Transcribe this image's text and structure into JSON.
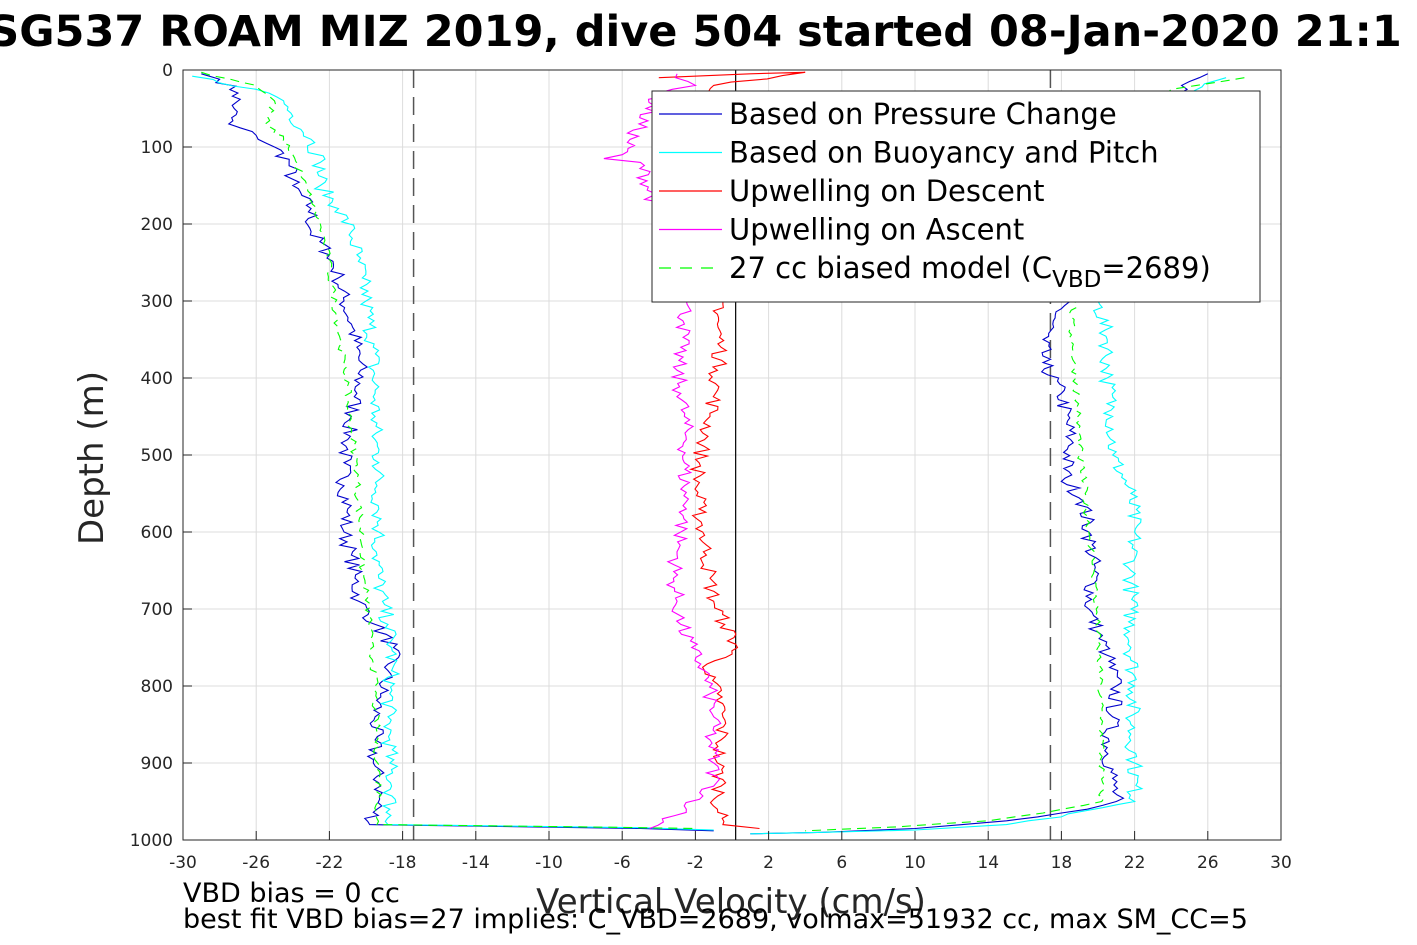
{
  "chart_data": {
    "type": "line",
    "title": "SG537 ROAM MIZ 2019, dive 504 started 08-Jan-2020 21:1",
    "xlabel": "Vertical Velocity (cm/s)",
    "ylabel": "Depth (m)",
    "xlim": [
      -30,
      30
    ],
    "ylim": [
      0,
      1000
    ],
    "y_reversed": true,
    "grid": true,
    "legend_position": "top-right",
    "xticks": [
      -30,
      -26,
      -22,
      -18,
      -14,
      -10,
      -6,
      -2,
      2,
      6,
      10,
      14,
      18,
      22,
      26,
      30
    ],
    "yticks": [
      0,
      100,
      200,
      300,
      400,
      500,
      600,
      700,
      800,
      900,
      1000
    ],
    "reference_lines": {
      "zero_line_x": 0.2,
      "dashed_lines_x": [
        -17.4,
        17.4
      ]
    },
    "series": [
      {
        "name": "Based on Pressure Change",
        "color": "#0000cc",
        "style": "solid",
        "descent": [
          [
            -29,
            5
          ],
          [
            -28,
            12
          ],
          [
            -27,
            30
          ],
          [
            -27.2,
            50
          ],
          [
            -27.5,
            70
          ],
          [
            -26,
            85
          ],
          [
            -25,
            100
          ],
          [
            -24.2,
            120
          ],
          [
            -24,
            150
          ],
          [
            -23,
            180
          ],
          [
            -23,
            210
          ],
          [
            -22,
            240
          ],
          [
            -21.5,
            270
          ],
          [
            -21.2,
            300
          ],
          [
            -20.8,
            330
          ],
          [
            -20.5,
            360
          ],
          [
            -20.3,
            390
          ],
          [
            -20.5,
            420
          ],
          [
            -20.8,
            450
          ],
          [
            -21,
            480
          ],
          [
            -21.2,
            510
          ],
          [
            -21.2,
            540
          ],
          [
            -21,
            570
          ],
          [
            -21.2,
            600
          ],
          [
            -20.8,
            630
          ],
          [
            -20.6,
            660
          ],
          [
            -20.4,
            690
          ],
          [
            -19.5,
            720
          ],
          [
            -18.5,
            750
          ],
          [
            -18.8,
            780
          ],
          [
            -19.2,
            810
          ],
          [
            -19.5,
            840
          ],
          [
            -19.5,
            870
          ],
          [
            -19.6,
            900
          ],
          [
            -19.2,
            930
          ],
          [
            -19.4,
            960
          ],
          [
            -19.8,
            980
          ],
          [
            -5,
            985
          ],
          [
            -1,
            988
          ]
        ],
        "ascent": [
          [
            26,
            5
          ],
          [
            25,
            15
          ],
          [
            24.5,
            30
          ],
          [
            17,
            350
          ],
          [
            17,
            380
          ],
          [
            18,
            420
          ],
          [
            18.5,
            480
          ],
          [
            18.2,
            530
          ],
          [
            19.2,
            560
          ],
          [
            19.5,
            600
          ],
          [
            19.8,
            650
          ],
          [
            19.5,
            700
          ],
          [
            20,
            730
          ],
          [
            20.5,
            760
          ],
          [
            21,
            800
          ],
          [
            20.8,
            840
          ],
          [
            20.5,
            880
          ],
          [
            20.8,
            920
          ],
          [
            21,
            950
          ],
          [
            18,
            965
          ],
          [
            15,
            975
          ],
          [
            10,
            985
          ],
          [
            5,
            990
          ],
          [
            1,
            992
          ]
        ]
      },
      {
        "name": "Based on Buoyancy and Pitch",
        "color": "#00ffff",
        "style": "solid",
        "descent": [
          [
            -29.5,
            8
          ],
          [
            -26,
            25
          ],
          [
            -24.5,
            40
          ],
          [
            -24,
            60
          ],
          [
            -23,
            90
          ],
          [
            -22.5,
            120
          ],
          [
            -22.5,
            150
          ],
          [
            -21.5,
            180
          ],
          [
            -20.8,
            210
          ],
          [
            -20.5,
            240
          ],
          [
            -20.2,
            270
          ],
          [
            -20,
            300
          ],
          [
            -19.8,
            330
          ],
          [
            -19.6,
            360
          ],
          [
            -19.6,
            390
          ],
          [
            -19.5,
            420
          ],
          [
            -19.5,
            450
          ],
          [
            -19.5,
            480
          ],
          [
            -19.3,
            510
          ],
          [
            -19.4,
            540
          ],
          [
            -19.3,
            570
          ],
          [
            -19.3,
            600
          ],
          [
            -19.4,
            630
          ],
          [
            -19.3,
            660
          ],
          [
            -19.1,
            690
          ],
          [
            -18.8,
            720
          ],
          [
            -18.6,
            750
          ],
          [
            -18.6,
            780
          ],
          [
            -18.7,
            810
          ],
          [
            -18.8,
            840
          ],
          [
            -18.7,
            870
          ],
          [
            -18.7,
            900
          ],
          [
            -18.6,
            930
          ],
          [
            -18.7,
            960
          ],
          [
            -18.8,
            980
          ],
          [
            -5,
            984
          ],
          [
            -1,
            987
          ]
        ],
        "ascent": [
          [
            27,
            10
          ],
          [
            25,
            30
          ],
          [
            20,
            300
          ],
          [
            20.5,
            350
          ],
          [
            20.5,
            400
          ],
          [
            20.8,
            450
          ],
          [
            20.8,
            500
          ],
          [
            21.8,
            550
          ],
          [
            22,
            600
          ],
          [
            21.8,
            650
          ],
          [
            21.8,
            700
          ],
          [
            21.8,
            750
          ],
          [
            22,
            800
          ],
          [
            21.8,
            850
          ],
          [
            22,
            900
          ],
          [
            22,
            950
          ],
          [
            18,
            970
          ],
          [
            15,
            980
          ],
          [
            10,
            987
          ],
          [
            5,
            990
          ],
          [
            1,
            992
          ]
        ]
      },
      {
        "name": "Upwelling on Descent",
        "color": "#ff0000",
        "style": "solid",
        "descent": [
          [
            -4,
            10
          ],
          [
            1,
            5
          ],
          [
            4,
            3
          ],
          [
            -1,
            20
          ],
          [
            -2,
            40
          ],
          [
            -0.5,
            300
          ],
          [
            -0.8,
            330
          ],
          [
            -0.6,
            360
          ],
          [
            -0.8,
            390
          ],
          [
            -0.9,
            420
          ],
          [
            -1.2,
            450
          ],
          [
            -1.5,
            480
          ],
          [
            -1.8,
            510
          ],
          [
            -1.9,
            540
          ],
          [
            -1.8,
            570
          ],
          [
            -1.6,
            600
          ],
          [
            -1.4,
            630
          ],
          [
            -1.2,
            660
          ],
          [
            -1.0,
            690
          ],
          [
            -0.4,
            720
          ],
          [
            0.3,
            750
          ],
          [
            -1.5,
            780
          ],
          [
            -0.8,
            810
          ],
          [
            -0.5,
            840
          ],
          [
            -0.6,
            870
          ],
          [
            -0.8,
            900
          ],
          [
            -0.6,
            930
          ],
          [
            -0.8,
            960
          ],
          [
            -0.5,
            980
          ],
          [
            1.5,
            985
          ]
        ]
      },
      {
        "name": "Upwelling on Ascent",
        "color": "#ff00ff",
        "style": "solid",
        "ascent": [
          [
            -3,
            5
          ],
          [
            -2,
            20
          ],
          [
            -4,
            30
          ],
          [
            -6,
            110
          ],
          [
            -7,
            115
          ],
          [
            -5,
            120
          ],
          [
            -2.5,
            300
          ],
          [
            -2.6,
            330
          ],
          [
            -2.8,
            360
          ],
          [
            -3,
            390
          ],
          [
            -2.8,
            420
          ],
          [
            -2.6,
            450
          ],
          [
            -2.5,
            480
          ],
          [
            -2.6,
            510
          ],
          [
            -2.6,
            540
          ],
          [
            -2.5,
            570
          ],
          [
            -2.8,
            600
          ],
          [
            -3,
            630
          ],
          [
            -3.2,
            660
          ],
          [
            -3,
            690
          ],
          [
            -2.8,
            720
          ],
          [
            -2.2,
            750
          ],
          [
            -1.5,
            780
          ],
          [
            -1.2,
            810
          ],
          [
            -1.0,
            840
          ],
          [
            -1.2,
            870
          ],
          [
            -1.0,
            900
          ],
          [
            -1.0,
            930
          ],
          [
            -2.5,
            960
          ],
          [
            -4.5,
            985
          ]
        ]
      },
      {
        "name": "27 cc biased model (C_VBD=2689)",
        "color": "#00ff00",
        "style": "dashed",
        "descent": [
          [
            -29,
            3
          ],
          [
            -26,
            20
          ],
          [
            -25,
            40
          ],
          [
            -25.5,
            70
          ],
          [
            -24.5,
            90
          ],
          [
            -24,
            110
          ],
          [
            -23.5,
            140
          ],
          [
            -23,
            170
          ],
          [
            -22.5,
            200
          ],
          [
            -22.2,
            230
          ],
          [
            -22,
            260
          ],
          [
            -21.8,
            290
          ],
          [
            -21.6,
            320
          ],
          [
            -21.4,
            350
          ],
          [
            -21.2,
            380
          ],
          [
            -21,
            410
          ],
          [
            -21,
            440
          ],
          [
            -20.8,
            470
          ],
          [
            -20.6,
            500
          ],
          [
            -20.5,
            530
          ],
          [
            -20.4,
            560
          ],
          [
            -20.3,
            590
          ],
          [
            -20.2,
            620
          ],
          [
            -20.2,
            650
          ],
          [
            -20,
            680
          ],
          [
            -19.8,
            710
          ],
          [
            -19.8,
            740
          ],
          [
            -19.6,
            770
          ],
          [
            -19.5,
            800
          ],
          [
            -19.5,
            830
          ],
          [
            -19.4,
            860
          ],
          [
            -19.4,
            890
          ],
          [
            -19.3,
            920
          ],
          [
            -19.3,
            950
          ],
          [
            -19.4,
            980
          ],
          [
            -8,
            983
          ],
          [
            -2,
            985
          ]
        ],
        "ascent": [
          [
            28,
            10
          ],
          [
            24,
            25
          ],
          [
            18.5,
            320
          ],
          [
            18.6,
            360
          ],
          [
            18.8,
            400
          ],
          [
            18.9,
            450
          ],
          [
            19,
            500
          ],
          [
            19.3,
            550
          ],
          [
            19.5,
            600
          ],
          [
            19.8,
            650
          ],
          [
            19.9,
            700
          ],
          [
            20,
            750
          ],
          [
            20.1,
            800
          ],
          [
            20.2,
            850
          ],
          [
            20.2,
            900
          ],
          [
            20.2,
            950
          ],
          [
            17,
            965
          ],
          [
            14,
            975
          ],
          [
            9,
            983
          ],
          [
            4,
            988
          ]
        ]
      }
    ],
    "legend": {
      "entries": [
        {
          "label": "Based on Pressure Change",
          "color": "#0000cc",
          "dashed": false
        },
        {
          "label": "Based on Buoyancy and Pitch",
          "color": "#00ffff",
          "dashed": false
        },
        {
          "label": "Upwelling on Descent",
          "color": "#ff0000",
          "dashed": false
        },
        {
          "label": "Upwelling on Ascent",
          "color": "#ff00ff",
          "dashed": false
        },
        {
          "label_prefix": "27 cc biased model (C",
          "label_sub": "VBD",
          "label_suffix": "=2689)",
          "color": "#00ff00",
          "dashed": true
        }
      ]
    },
    "annotations": [
      "VBD bias = 0 cc",
      "best fit VBD bias=27 implies: C_VBD=2689, volmax=51932 cc, max SM_CC=5"
    ]
  }
}
